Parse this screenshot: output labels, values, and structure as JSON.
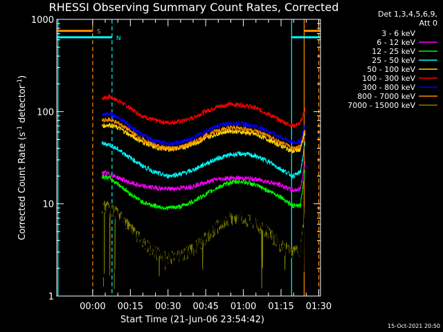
{
  "chart_data": {
    "type": "line",
    "title": "RHESSI Observing Summary Count Rates, Corrected",
    "xlabel": "Start Time (21-Jun-06 23:54:42)",
    "ylabel_main": "Corrected Count Rate (s",
    "ylabel_sup1": "-1",
    "ylabel_mid": " detector",
    "ylabel_sup2": "-1",
    "ylabel_end": ")",
    "y_scale": "log",
    "ylim": [
      1,
      1000
    ],
    "xlim_minutes": [
      -9,
      96
    ],
    "x_ticks": [
      {
        "label": "00:00",
        "value": 5.3
      },
      {
        "label": "00:15",
        "value": 20.3
      },
      {
        "label": "00:30",
        "value": 35.3
      },
      {
        "label": "00:45",
        "value": 50.3
      },
      {
        "label": "01:00",
        "value": 65.3
      },
      {
        "label": "01:15",
        "value": 80.3
      },
      {
        "label": "01:30",
        "value": 95.3
      }
    ],
    "y_ticks": [
      {
        "label": "1",
        "value": 1
      },
      {
        "label": "10",
        "value": 10
      },
      {
        "label": "100",
        "value": 100
      },
      {
        "label": "1000",
        "value": 1000
      }
    ],
    "legend_header": [
      "Det 1,3,4,5,6,9,",
      "Att 0"
    ],
    "legend_placement": "right",
    "series": [
      {
        "name": "3 - 6 keV",
        "color": "#000000"
      },
      {
        "name": "6 - 12 keV",
        "color": "#ff00ff"
      },
      {
        "name": "12 - 25 keV",
        "color": "#00ff00"
      },
      {
        "name": "25 - 50 keV",
        "color": "#00ffff"
      },
      {
        "name": "50 - 100 keV",
        "color": "#ffd700"
      },
      {
        "name": "100 - 300 keV",
        "color": "#ff0000"
      },
      {
        "name": "300 - 800 keV",
        "color": "#0000ff"
      },
      {
        "name": "800 - 7000 keV",
        "color": "#ff8c00"
      },
      {
        "name": "7000 - 15000 keV",
        "color": "#808000"
      }
    ],
    "curves": [
      {
        "color": "#ff0000",
        "x": [
          9,
          12,
          16,
          20,
          25,
          30,
          35,
          40,
          45,
          50,
          55,
          60,
          65,
          70,
          75,
          80,
          85,
          88,
          90
        ],
        "y": [
          140,
          145,
          130,
          110,
          90,
          80,
          76,
          78,
          85,
          100,
          113,
          120,
          118,
          110,
          95,
          80,
          70,
          75,
          110
        ]
      },
      {
        "color": "#0000ff",
        "x": [
          9,
          12,
          16,
          20,
          25,
          30,
          35,
          40,
          45,
          50,
          55,
          60,
          65,
          70,
          75,
          80,
          85,
          88,
          90
        ],
        "y": [
          92,
          95,
          85,
          70,
          56,
          48,
          45,
          46,
          52,
          60,
          70,
          75,
          74,
          70,
          62,
          53,
          46,
          48,
          75
        ]
      },
      {
        "color": "#ffd700",
        "x": [
          9,
          12,
          16,
          20,
          25,
          30,
          35,
          40,
          45,
          50,
          55,
          60,
          65,
          70,
          75,
          80,
          85,
          88,
          90
        ],
        "y": [
          70,
          72,
          66,
          56,
          47,
          41,
          39,
          40,
          44,
          51,
          58,
          62,
          60,
          57,
          50,
          43,
          37,
          39,
          60
        ]
      },
      {
        "color": "#ff8c00",
        "x": [
          9,
          12,
          16,
          20,
          25,
          30,
          35,
          40,
          45,
          50,
          55,
          60,
          65,
          70,
          75,
          80,
          85,
          88,
          90
        ],
        "y": [
          80,
          82,
          74,
          62,
          50,
          43,
          40,
          41,
          46,
          54,
          63,
          67,
          66,
          62,
          55,
          46,
          40,
          42,
          66
        ]
      },
      {
        "color": "#00ffff",
        "x": [
          9,
          12,
          16,
          20,
          25,
          30,
          35,
          40,
          45,
          50,
          55,
          60,
          65,
          70,
          75,
          80,
          85,
          88,
          90
        ],
        "y": [
          45,
          44,
          38,
          32,
          26,
          22,
          20,
          21,
          23,
          27,
          31,
          34,
          35,
          33,
          29,
          24,
          20,
          22,
          48
        ]
      },
      {
        "color": "#ff00ff",
        "x": [
          9,
          12,
          16,
          20,
          25,
          30,
          35,
          40,
          45,
          50,
          55,
          60,
          65,
          70,
          75,
          80,
          85,
          88,
          90
        ],
        "y": [
          22,
          21,
          19,
          17,
          15.5,
          15,
          14.5,
          14.8,
          15.5,
          17,
          18.5,
          19,
          19,
          18.5,
          17.5,
          16,
          14,
          14.5,
          30
        ]
      },
      {
        "color": "#00ff00",
        "x": [
          9,
          12,
          16,
          20,
          25,
          30,
          35,
          40,
          45,
          50,
          55,
          60,
          65,
          70,
          75,
          80,
          85,
          88,
          90
        ],
        "y": [
          20,
          19,
          16,
          13,
          10.5,
          9.5,
          9,
          9.3,
          10.5,
          12.5,
          15,
          17,
          17.5,
          16,
          14,
          12,
          9.5,
          9.5,
          25
        ]
      },
      {
        "color": "#808000",
        "x": [
          9,
          12,
          16,
          20,
          25,
          30,
          35,
          40,
          45,
          50,
          55,
          60,
          65,
          70,
          75,
          80,
          85,
          88,
          90
        ],
        "y": [
          9.5,
          9,
          7.5,
          5.5,
          4,
          3,
          2.6,
          2.7,
          3.2,
          4.2,
          5.8,
          7,
          7,
          6.2,
          5,
          3.6,
          3,
          3.2,
          10
        ]
      },
      {
        "color": "#000000",
        "x": [
          9,
          12,
          16,
          20,
          25,
          30,
          35,
          40,
          45,
          50,
          55,
          60,
          65,
          70,
          75,
          80,
          85,
          88,
          90
        ],
        "y": [
          9,
          8.5,
          7,
          5,
          3.8,
          3,
          2.6,
          2.7,
          3.2,
          4.2,
          5.8,
          7.5,
          7.5,
          6.5,
          5,
          3.6,
          2.7,
          3,
          9
        ]
      }
    ],
    "flags": [
      {
        "label": "S",
        "color": "#ff8c00",
        "level": 750,
        "segments": [
          [
            -9,
            5.3
          ],
          [
            89.5,
            96
          ]
        ]
      },
      {
        "label": "N",
        "color": "#00ffff",
        "level": 640,
        "segments": [
          [
            -9,
            13
          ],
          [
            84.5,
            96
          ]
        ]
      }
    ],
    "vlines": [
      {
        "x": -8.5,
        "color": "#00ffff",
        "dash": false
      },
      {
        "x": 5.3,
        "color": "#ff8c00",
        "dash": true
      },
      {
        "x": 13,
        "color": "#00ffff",
        "dash": true
      },
      {
        "x": 84.5,
        "color": "#00ffff",
        "dash": false
      },
      {
        "x": 89.5,
        "color": "#ff8c00",
        "dash": false
      },
      {
        "x": 95.3,
        "color": "#ff8c00",
        "dash": true
      }
    ],
    "timestamp": "15-Oct-2021 20:50"
  }
}
